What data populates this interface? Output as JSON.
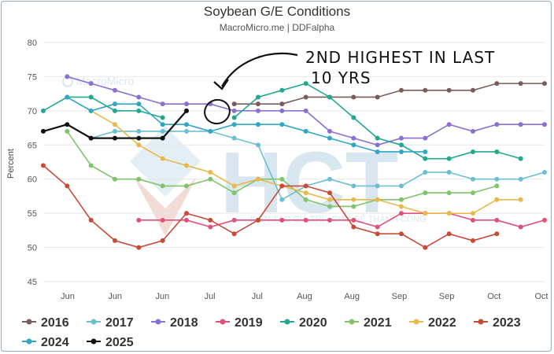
{
  "chart_data": {
    "type": "line",
    "title": "Soybean G/E Conditions",
    "subtitle": "MacroMicro.me | DDFalpha",
    "ylabel": "Percent",
    "ylim": [
      45,
      80
    ],
    "yticks": [
      45,
      50,
      55,
      60,
      65,
      70,
      75,
      80
    ],
    "x_tick_labels": [
      "Jun",
      "Jun",
      "Jun",
      "Jul",
      "Jul",
      "Aug",
      "Aug",
      "Sep",
      "Sep",
      "Oct",
      "Oct"
    ],
    "x": [
      0,
      1,
      2,
      3,
      4,
      5,
      6,
      7,
      8,
      9,
      10,
      11,
      12,
      13,
      14,
      15,
      16,
      17,
      18,
      19,
      20,
      21
    ],
    "grid": true,
    "legend_position": "bottom",
    "annotation": {
      "line1": "2ND HIGHEST IN LAST",
      "line2": "10 YRS"
    },
    "watermarks": {
      "logo_text": "MacroMicro",
      "brand": "HCT",
      "tagline": "KIẾN TẠO GIÁ TRỊ - CHIA SẺ THÀNH CÔNG"
    },
    "series": [
      {
        "name": "2016",
        "color": "#7a5c58",
        "values": [
          null,
          null,
          null,
          null,
          null,
          null,
          null,
          null,
          71,
          71,
          71,
          72,
          72,
          72,
          72,
          73,
          73,
          73,
          73,
          74,
          74,
          74
        ]
      },
      {
        "name": "2017",
        "color": "#6bbfd0",
        "values": [
          null,
          null,
          66,
          67,
          67,
          67,
          67,
          67,
          66,
          65,
          57,
          59,
          60,
          59,
          59,
          59,
          61,
          61,
          60,
          60,
          60,
          61
        ]
      },
      {
        "name": "2018",
        "color": "#8c6fd1",
        "values": [
          null,
          75,
          74,
          73,
          72,
          71,
          71,
          71,
          70,
          70,
          70,
          70,
          67,
          66,
          65,
          66,
          66,
          68,
          67,
          68,
          68,
          68
        ]
      },
      {
        "name": "2019",
        "color": "#e0507a",
        "values": [
          null,
          null,
          null,
          null,
          54,
          54,
          54,
          53,
          54,
          54,
          54,
          54,
          54,
          54,
          53,
          55,
          55,
          55,
          54,
          54,
          53,
          54
        ]
      },
      {
        "name": "2020",
        "color": "#20a98e",
        "values": [
          70,
          72,
          72,
          70,
          70,
          69,
          null,
          null,
          69,
          72,
          73,
          74,
          72,
          69,
          66,
          65,
          63,
          63,
          64,
          64,
          63,
          null
        ]
      },
      {
        "name": "2021",
        "color": "#7fc46a",
        "values": [
          null,
          67,
          62,
          60,
          60,
          59,
          59,
          60,
          58,
          60,
          60,
          57,
          56,
          56,
          57,
          57,
          58,
          58,
          58,
          59,
          null,
          null
        ]
      },
      {
        "name": "2022",
        "color": "#e8b84b",
        "values": [
          null,
          null,
          70,
          68,
          65,
          63,
          62,
          61,
          59,
          60,
          59,
          58,
          57,
          57,
          57,
          56,
          55,
          55,
          55,
          57,
          57,
          null
        ]
      },
      {
        "name": "2023",
        "color": "#c94a36",
        "values": [
          62,
          59,
          54,
          51,
          50,
          51,
          55,
          54,
          52,
          54,
          59,
          59,
          58,
          53,
          52,
          52,
          50,
          52,
          51,
          52,
          null,
          null
        ]
      },
      {
        "name": "2024",
        "color": "#2fa6c3",
        "values": [
          null,
          72,
          70,
          71,
          71,
          68,
          68,
          67,
          68,
          68,
          68,
          67,
          66,
          65,
          64,
          64,
          64,
          null,
          null,
          null,
          null,
          null
        ]
      },
      {
        "name": "2025",
        "color": "#111111",
        "values": [
          67,
          68,
          66,
          66,
          66,
          66,
          70,
          null,
          null,
          null,
          null,
          null,
          null,
          null,
          null,
          null,
          null,
          null,
          null,
          null,
          null,
          null
        ]
      }
    ]
  }
}
